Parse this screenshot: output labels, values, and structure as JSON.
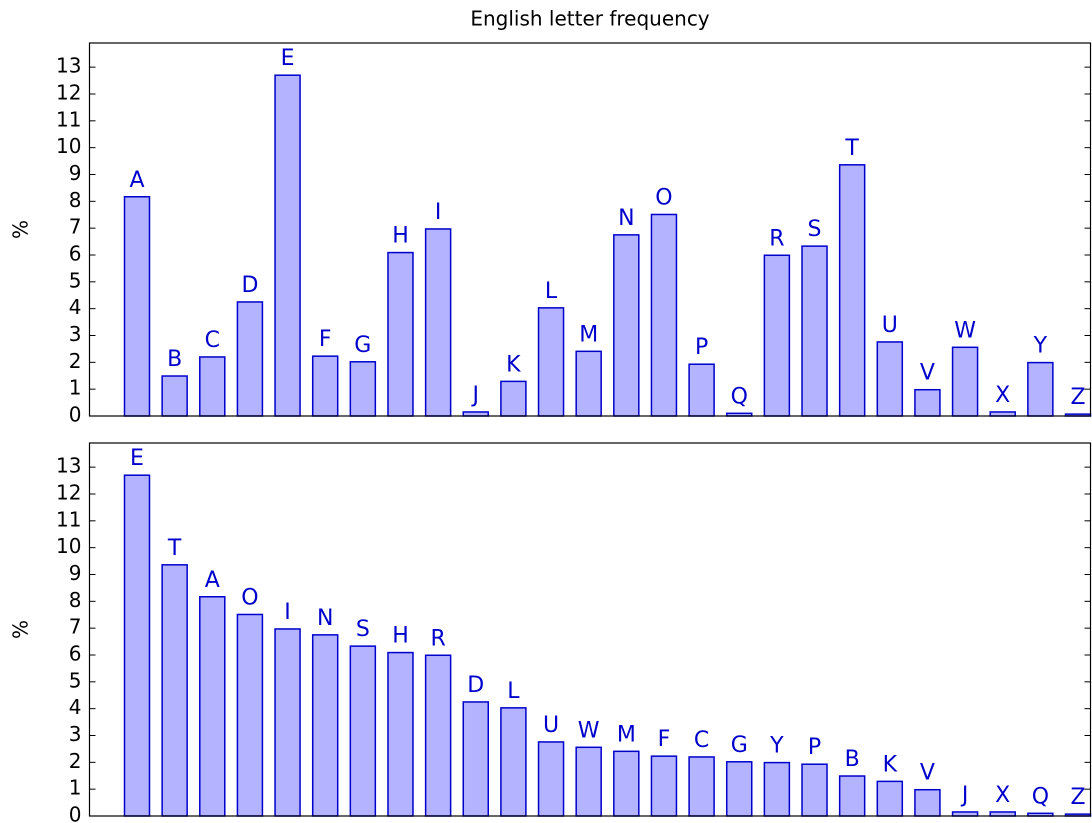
{
  "chart_data": [
    {
      "type": "bar",
      "title": "English letter frequency",
      "ylabel": "%",
      "categories": [
        "A",
        "B",
        "C",
        "D",
        "E",
        "F",
        "G",
        "H",
        "I",
        "J",
        "K",
        "L",
        "M",
        "N",
        "O",
        "P",
        "Q",
        "R",
        "S",
        "T",
        "U",
        "V",
        "W",
        "X",
        "Y",
        "Z"
      ],
      "values": [
        8.17,
        1.49,
        2.2,
        4.25,
        12.7,
        2.23,
        2.02,
        6.09,
        6.97,
        0.15,
        1.29,
        4.03,
        2.41,
        6.75,
        7.51,
        1.93,
        0.1,
        5.99,
        6.33,
        9.36,
        2.76,
        0.98,
        2.56,
        0.15,
        1.99,
        0.07
      ],
      "color": "#b3b3ff",
      "edge_color": "#0000cc",
      "ylim": [
        0,
        13.9
      ],
      "yticks": [
        0,
        1,
        2,
        3,
        4,
        5,
        6,
        7,
        8,
        9,
        10,
        11,
        12,
        13
      ]
    },
    {
      "type": "bar",
      "ylabel": "%",
      "categories": [
        "E",
        "T",
        "A",
        "O",
        "I",
        "N",
        "S",
        "H",
        "R",
        "D",
        "L",
        "U",
        "W",
        "M",
        "F",
        "C",
        "G",
        "Y",
        "P",
        "B",
        "K",
        "V",
        "J",
        "X",
        "Q",
        "Z"
      ],
      "values": [
        12.7,
        9.36,
        8.17,
        7.51,
        6.97,
        6.75,
        6.33,
        6.09,
        5.99,
        4.25,
        4.03,
        2.76,
        2.56,
        2.41,
        2.23,
        2.2,
        2.02,
        1.99,
        1.93,
        1.49,
        1.29,
        0.98,
        0.15,
        0.15,
        0.1,
        0.07
      ],
      "color": "#b3b3ff",
      "edge_color": "#0000cc",
      "ylim": [
        0,
        13.9
      ],
      "yticks": [
        0,
        1,
        2,
        3,
        4,
        5,
        6,
        7,
        8,
        9,
        10,
        11,
        12,
        13
      ]
    }
  ]
}
